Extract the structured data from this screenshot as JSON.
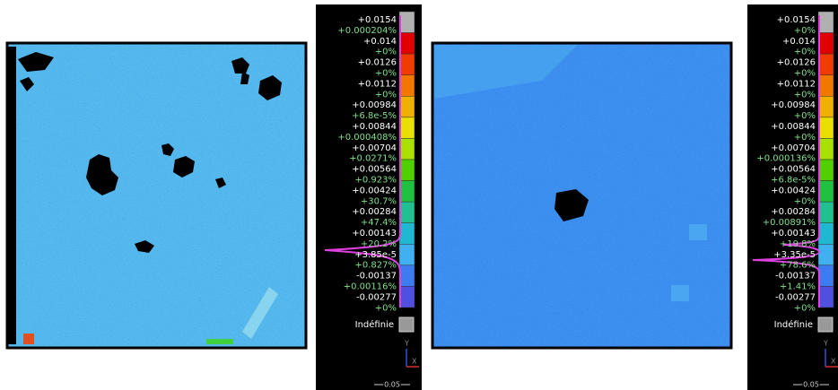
{
  "panels": [
    {
      "legend": {
        "labels": [
          "+0.0154",
          "+0.000204%",
          "+0.014",
          "+0%",
          "+0.0126",
          "+0%",
          "+0.0112",
          "+0%",
          "+0.00984",
          "+6.8e-5%",
          "+0.00844",
          "+0.000408%",
          "+0.00704",
          "+0.0271%",
          "+0.00564",
          "+0.923%",
          "+0.00424",
          "+30.7%",
          "+0.00284",
          "+47.4%",
          "+0.00143",
          "+20.2%",
          "+3.85e-5",
          "+0.827%",
          "-0.00137",
          "+0.00116%",
          "-0.00277",
          "+0%"
        ],
        "undefined_label": "Indéfinie",
        "axis_y": "Y",
        "axis_x": "X",
        "scale": "0.05"
      }
    },
    {
      "legend": {
        "labels": [
          "+0.0154",
          "+0%",
          "+0.014",
          "+0%",
          "+0.0126",
          "+0%",
          "+0.0112",
          "+0%",
          "+0.00984",
          "+0%",
          "+0.00844",
          "+0%",
          "+0.00704",
          "+0.000136%",
          "+0.00564",
          "+6.8e-5%",
          "+0.00424",
          "+0%",
          "+0.00284",
          "+0.00891%",
          "+0.00143",
          "+19.8%",
          "+3.35e-5",
          "+78.6%",
          "-0.00137",
          "+1.41%",
          "-0.00277",
          "+0%"
        ],
        "undefined_label": "Indéfinie",
        "axis_y": "Y",
        "axis_x": "X",
        "scale": "0.05"
      }
    }
  ]
}
